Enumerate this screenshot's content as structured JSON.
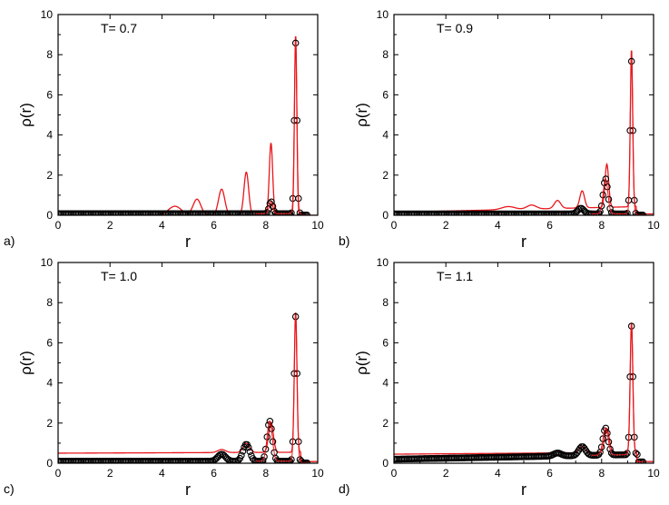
{
  "chart_data": [
    {
      "type": "line",
      "panel_label": "a)",
      "annotation": "T= 0.7",
      "xlabel": "r",
      "ylabel": "ρ(r)",
      "xlim": [
        0,
        10
      ],
      "ylim": [
        0,
        10
      ],
      "x_ticks": [
        0,
        2,
        4,
        6,
        8,
        10
      ],
      "y_ticks": [
        0,
        2,
        4,
        6,
        8,
        10
      ],
      "colors": {
        "line": "#e8171b",
        "markers": "#000000"
      },
      "series": [
        {
          "style": "red-line",
          "baseline": 0.0,
          "peaks": [
            [
              4.5,
              0.45,
              0.25
            ],
            [
              5.35,
              0.8,
              0.15
            ],
            [
              6.3,
              1.3,
              0.12
            ],
            [
              7.25,
              2.15,
              0.09
            ],
            [
              8.2,
              3.6,
              0.065
            ],
            [
              9.15,
              9.0,
              0.045
            ]
          ]
        },
        {
          "style": "open-circles",
          "baseline": 0.08,
          "peaks": [
            [
              8.2,
              0.6,
              0.07
            ],
            [
              9.15,
              8.5,
              0.05
            ]
          ]
        }
      ]
    },
    {
      "type": "line",
      "panel_label": "b)",
      "annotation": "T= 0.9",
      "xlabel": "r",
      "ylabel": "ρ(r)",
      "xlim": [
        0,
        10
      ],
      "ylim": [
        0,
        10
      ],
      "x_ticks": [
        0,
        2,
        4,
        6,
        8,
        10
      ],
      "y_ticks": [
        0,
        2,
        4,
        6,
        8,
        10
      ],
      "colors": {
        "line": "#e8171b",
        "markers": "#000000"
      },
      "series": [
        {
          "style": "red-line",
          "baseline_ramp": [
            0.15,
            0.45
          ],
          "peaks": [
            [
              4.4,
              0.15,
              0.25
            ],
            [
              5.3,
              0.2,
              0.18
            ],
            [
              6.3,
              0.4,
              0.12
            ],
            [
              7.25,
              0.85,
              0.09
            ],
            [
              8.2,
              2.15,
              0.07
            ],
            [
              9.15,
              7.85,
              0.045
            ]
          ]
        },
        {
          "style": "open-circles",
          "baseline": 0.07,
          "peaks": [
            [
              7.2,
              0.28,
              0.12
            ],
            [
              8.15,
              1.75,
              0.09
            ],
            [
              9.15,
              7.6,
              0.05
            ]
          ]
        }
      ]
    },
    {
      "type": "line",
      "panel_label": "c)",
      "annotation": "T= 1.0",
      "xlabel": "r",
      "ylabel": "ρ(r)",
      "xlim": [
        0,
        10
      ],
      "ylim": [
        0,
        10
      ],
      "x_ticks": [
        0,
        2,
        4,
        6,
        8,
        10
      ],
      "y_ticks": [
        0,
        2,
        4,
        6,
        8,
        10
      ],
      "colors": {
        "line": "#e8171b",
        "markers": "#000000"
      },
      "series": [
        {
          "style": "red-line",
          "baseline_ramp": [
            0.5,
            0.55
          ],
          "peaks": [
            [
              6.3,
              0.15,
              0.15
            ],
            [
              7.25,
              0.45,
              0.12
            ],
            [
              8.2,
              1.5,
              0.09
            ],
            [
              9.15,
              7.0,
              0.05
            ]
          ]
        },
        {
          "style": "open-circles",
          "baseline": 0.1,
          "peaks": [
            [
              6.3,
              0.35,
              0.15
            ],
            [
              7.25,
              0.85,
              0.13
            ],
            [
              8.15,
              2.0,
              0.1
            ],
            [
              9.15,
              7.2,
              0.055
            ]
          ]
        }
      ]
    },
    {
      "type": "line",
      "panel_label": "d)",
      "annotation": "T= 1.1",
      "xlabel": "r",
      "ylabel": "ρ(r)",
      "xlim": [
        0,
        10
      ],
      "ylim": [
        0,
        10
      ],
      "x_ticks": [
        0,
        2,
        4,
        6,
        8,
        10
      ],
      "y_ticks": [
        0,
        2,
        4,
        6,
        8,
        10
      ],
      "colors": {
        "line": "#e8171b",
        "markers": "#000000"
      },
      "series": [
        {
          "style": "red-line",
          "baseline_ramp": [
            0.45,
            0.55
          ],
          "peaks": [
            [
              6.3,
              0.1,
              0.15
            ],
            [
              7.25,
              0.3,
              0.12
            ],
            [
              8.2,
              1.2,
              0.09
            ],
            [
              9.15,
              6.5,
              0.05
            ]
          ]
        },
        {
          "style": "open-circles",
          "baseline_ramp": [
            0.2,
            0.45
          ],
          "peaks": [
            [
              6.3,
              0.15,
              0.15
            ],
            [
              7.25,
              0.45,
              0.13
            ],
            [
              8.15,
              1.35,
              0.1
            ],
            [
              9.15,
              6.4,
              0.055
            ]
          ]
        }
      ]
    }
  ]
}
